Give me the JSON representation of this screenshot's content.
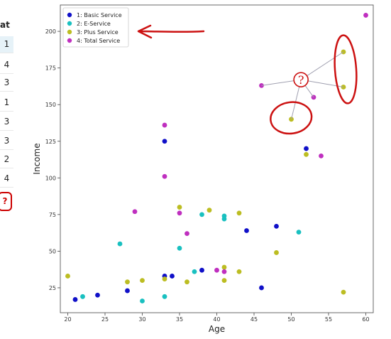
{
  "table_strip": {
    "header": "at",
    "values": [
      "1",
      "4",
      "3",
      "1",
      "3",
      "3",
      "2",
      "4",
      "?"
    ]
  },
  "chart_data": {
    "type": "scatter",
    "xlabel": "Age",
    "ylabel": "Income",
    "xlim": [
      19,
      61
    ],
    "ylim": [
      8,
      218
    ],
    "xticks": [
      20,
      25,
      30,
      35,
      40,
      45,
      50,
      55,
      60
    ],
    "yticks": [
      25,
      50,
      75,
      100,
      125,
      150,
      175,
      200
    ],
    "grid": false,
    "legend_position": "top-left",
    "series": [
      {
        "name": "1: Basic Service",
        "color": "#1010c8",
        "points": [
          [
            21,
            17
          ],
          [
            24,
            20
          ],
          [
            28,
            23
          ],
          [
            33,
            33
          ],
          [
            33,
            125
          ],
          [
            34,
            33
          ],
          [
            38,
            37
          ],
          [
            44,
            64
          ],
          [
            46,
            25
          ],
          [
            48,
            67
          ],
          [
            52,
            120
          ]
        ]
      },
      {
        "name": "2: E-Service",
        "color": "#19c0c0",
        "points": [
          [
            22,
            19
          ],
          [
            27,
            55
          ],
          [
            30,
            16
          ],
          [
            33,
            19
          ],
          [
            35,
            52
          ],
          [
            37,
            36
          ],
          [
            38,
            75
          ],
          [
            41,
            72
          ],
          [
            41,
            74
          ],
          [
            51,
            63
          ]
        ]
      },
      {
        "name": "3: Plus Service",
        "color": "#bcbd22",
        "points": [
          [
            20,
            33
          ],
          [
            28,
            29
          ],
          [
            30,
            30
          ],
          [
            33,
            31
          ],
          [
            35,
            80
          ],
          [
            36,
            29
          ],
          [
            39,
            78
          ],
          [
            41,
            30
          ],
          [
            41,
            39
          ],
          [
            43,
            36
          ],
          [
            43,
            76
          ],
          [
            48,
            49
          ],
          [
            50,
            140
          ],
          [
            52,
            116
          ],
          [
            57,
            22
          ],
          [
            57,
            162
          ],
          [
            57,
            186
          ]
        ]
      },
      {
        "name": "4: Total Service",
        "color": "#bf2fbf",
        "points": [
          [
            29,
            77
          ],
          [
            33,
            101
          ],
          [
            33,
            136
          ],
          [
            35,
            76
          ],
          [
            36,
            62
          ],
          [
            40,
            37
          ],
          [
            41,
            36
          ],
          [
            46,
            163
          ],
          [
            53,
            155
          ],
          [
            54,
            115
          ],
          [
            60,
            211
          ]
        ]
      }
    ],
    "annotations": {
      "question_mark": {
        "label": "?",
        "x": 51.3,
        "y": 167
      },
      "neighbor_links": [
        [
          57,
          186
        ],
        [
          57,
          162
        ],
        [
          53,
          155
        ],
        [
          50,
          140
        ],
        [
          46,
          163
        ]
      ],
      "circled_points": [
        [
          50,
          140
        ],
        [
          57,
          174
        ]
      ]
    }
  }
}
